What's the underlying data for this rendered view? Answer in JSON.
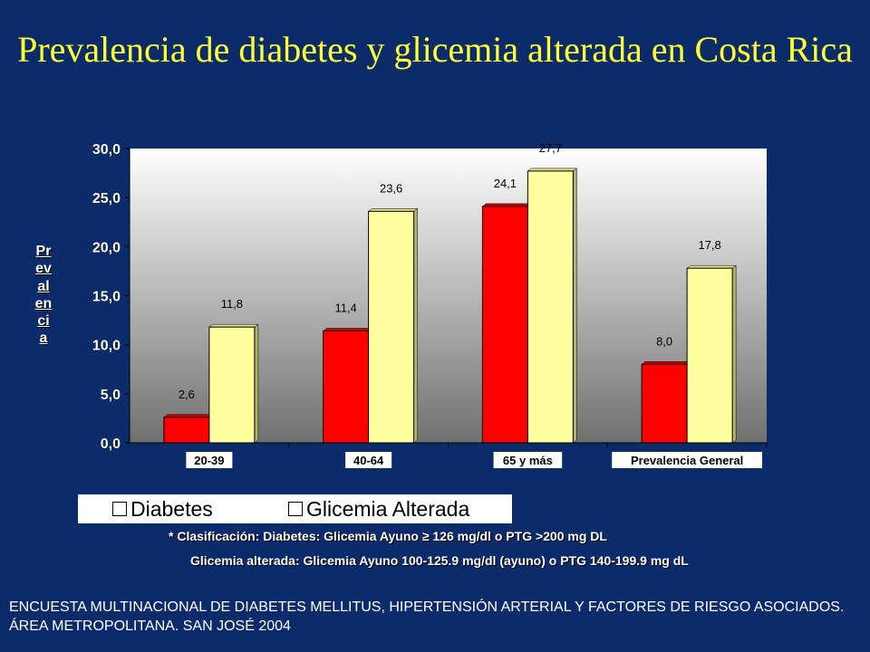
{
  "title": "Prevalencia de diabetes y glicemia alterada en Costa Rica",
  "chart_data": {
    "type": "bar",
    "categories": [
      "20-39",
      "40-64",
      "65 y más",
      "Prevalencia General"
    ],
    "series": [
      {
        "name": "Diabetes",
        "values": [
          2.6,
          11.4,
          24.1,
          8.0
        ],
        "labels": [
          "2,6",
          "11,4",
          "24,1",
          "8,0"
        ],
        "color": "#ff0000"
      },
      {
        "name": "Glicemia Alterada",
        "values": [
          11.8,
          23.6,
          27.7,
          17.8
        ],
        "labels": [
          "11,8",
          "23,6",
          "27,7",
          "17,8"
        ],
        "color": "#ffffa0"
      }
    ],
    "ylabel": "Prevalencia",
    "ylim": [
      0,
      30
    ],
    "yticks": [
      0,
      5,
      10,
      15,
      20,
      25,
      30
    ],
    "ytick_labels": [
      "0,0",
      "5,0",
      "10,0",
      "15,0",
      "20,0",
      "25,0",
      "30,0"
    ],
    "grid": false,
    "legend_position": "bottom"
  },
  "notes": {
    "line1": "* Clasificación: Diabetes: Glicemia Ayuno  ≥ 126 mg/dl  o PTG >200 mg DL",
    "line2": "Glicemia  alterada: Glicemia Ayuno  100-125.9 mg/dl (ayuno) o PTG 140-199.9 mg dL"
  },
  "source": "ENCUESTA MULTINACIONAL DE DIABETES MELLITUS, HIPERTENSIÓN ARTERIAL Y FACTORES DE RIESGO ASOCIADOS.   ÁREA METROPOLITANA.  SAN JOSÉ 2004"
}
